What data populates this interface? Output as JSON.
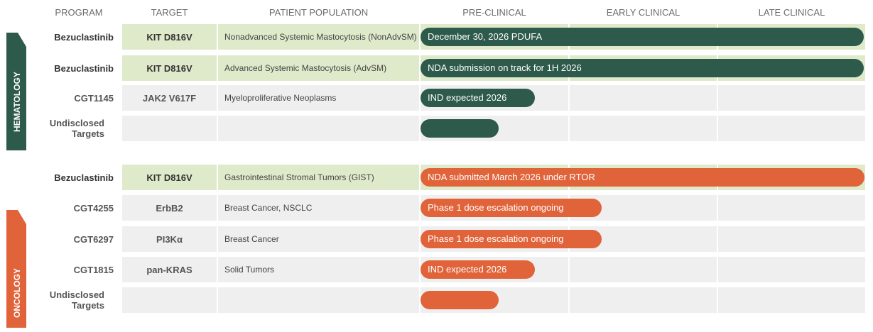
{
  "headers": {
    "program": "PROGRAM",
    "target": "TARGET",
    "population": "PATIENT POPULATION",
    "preclinical": "PRE-CLINICAL",
    "early": "EARLY CLINICAL",
    "late": "LATE CLINICAL"
  },
  "groups": {
    "hematology": "HEMATOLOGY",
    "oncology": "ONCOLOGY"
  },
  "colors": {
    "hematology": "#2d5a4a",
    "oncology": "#e0633a",
    "highlight_row": "#dfeacb",
    "plain_row": "#efefef"
  },
  "rows": [
    {
      "program": "Bezuclastinib",
      "target": "KIT D816V",
      "population": "Nonadvanced Systemic Mastocytosis (NonAdvSM)",
      "bar_text": "December 30, 2026 PDUFA",
      "progress": "late-clinical complete"
    },
    {
      "program": "Bezuclastinib",
      "target": "KIT D816V",
      "population": "Advanced Systemic Mastocytosis (AdvSM)",
      "bar_text": "NDA submission on track for 1H 2026",
      "progress": "late-clinical complete"
    },
    {
      "program": "CGT1145",
      "target": "JAK2 V617F",
      "population": "Myeloproliferative Neoplasms",
      "bar_text": "IND expected 2026",
      "progress": "pre-clinical"
    },
    {
      "program": "Undisclosed Targets",
      "target": "",
      "population": "",
      "bar_text": "",
      "progress": "pre-clinical"
    },
    {
      "program": "Bezuclastinib",
      "target": "KIT D816V",
      "population": "Gastrointestinal Stromal Tumors (GIST)",
      "bar_text": "NDA submitted March 2026 under RTOR",
      "progress": "late-clinical complete"
    },
    {
      "program": "CGT4255",
      "target": "ErbB2",
      "population": "Breast Cancer, NSCLC",
      "bar_text": "Phase 1 dose escalation ongoing",
      "progress": "early-clinical"
    },
    {
      "program": "CGT6297",
      "target": "PI3Kα",
      "population": "Breast Cancer",
      "bar_text": "Phase 1 dose escalation ongoing",
      "progress": "early-clinical"
    },
    {
      "program": "CGT1815",
      "target": "pan-KRAS",
      "population": "Solid Tumors",
      "bar_text": "IND expected 2026",
      "progress": "pre-clinical"
    },
    {
      "program": "Undisclosed Targets",
      "target": "",
      "population": "",
      "bar_text": "",
      "progress": "pre-clinical"
    }
  ]
}
